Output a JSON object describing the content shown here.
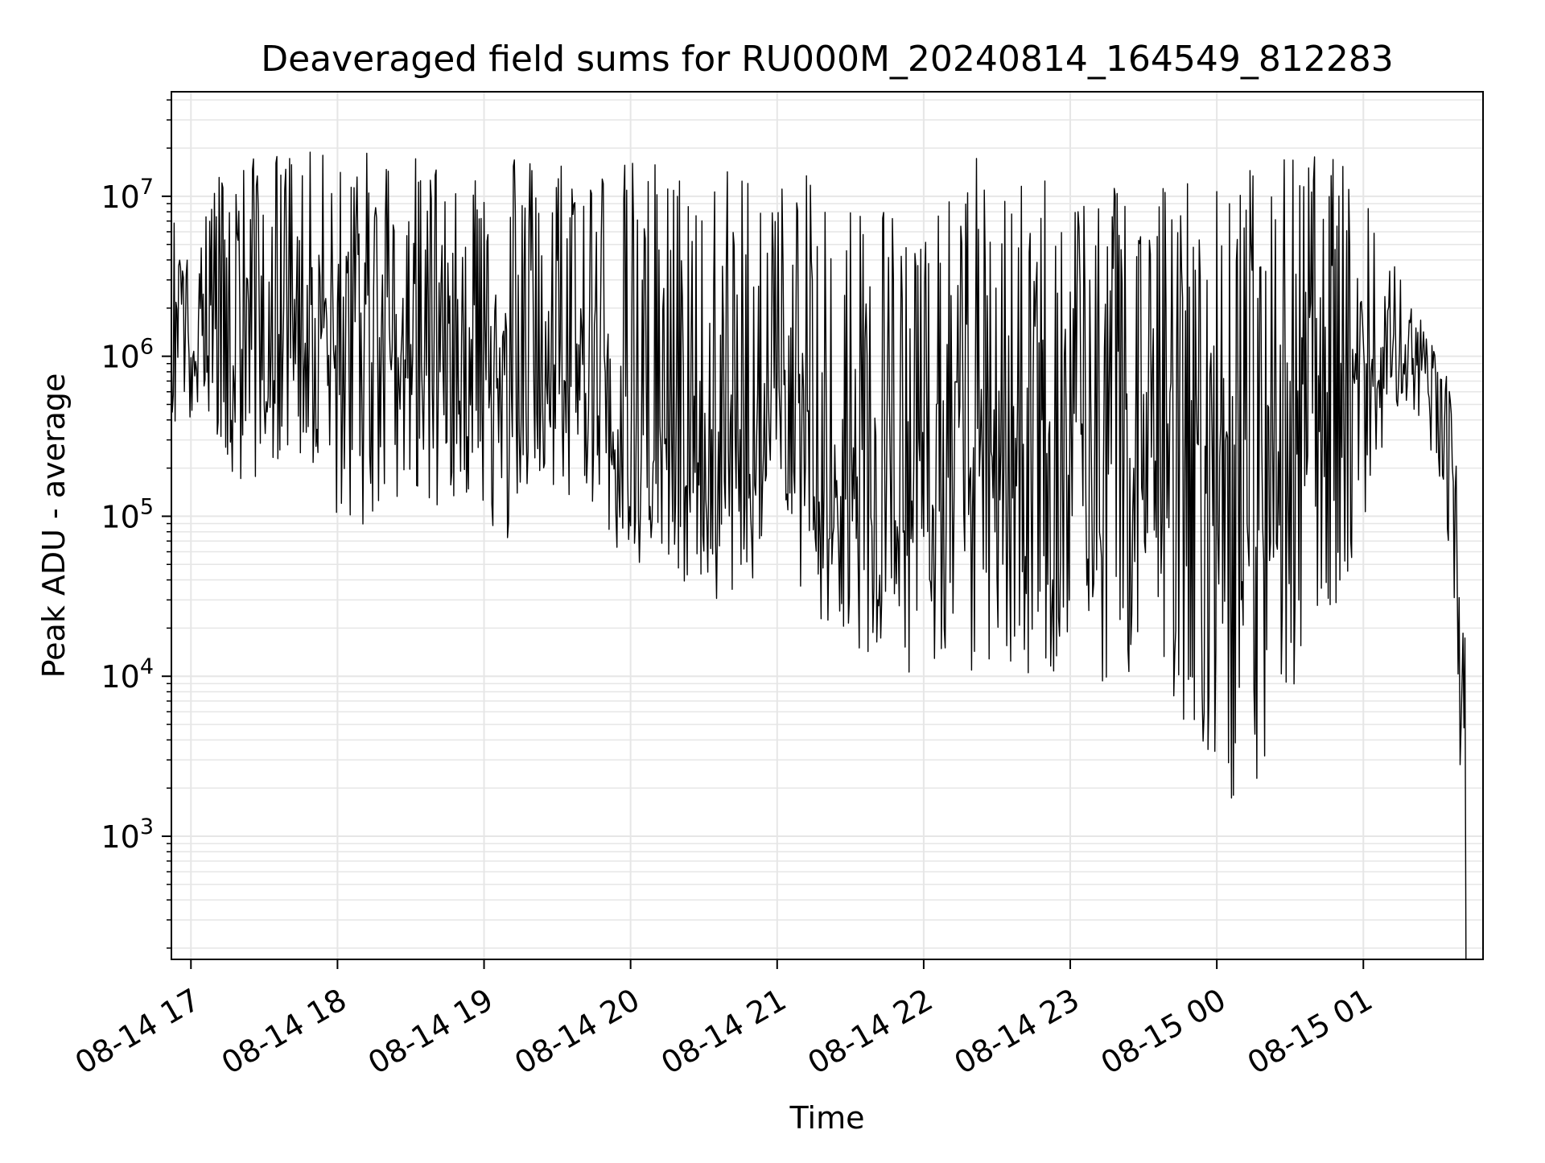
{
  "chart_data": {
    "type": "line",
    "title": "Deaveraged field sums for RU000M_20240814_164549_812283",
    "xlabel": "Time",
    "ylabel": "Peak ADU - average",
    "y_scale": "log",
    "ylim": [
      170,
      45000000
    ],
    "xlim": [
      "2024-08-14 16:52",
      "2024-08-15 01:49"
    ],
    "grid": true,
    "line_color": "#000000",
    "grid_color": "#e6e6e6",
    "x_ticks": [
      {
        "value": "2024-08-14 17:00",
        "label": "08-14 17"
      },
      {
        "value": "2024-08-14 18:00",
        "label": "08-14 18"
      },
      {
        "value": "2024-08-14 19:00",
        "label": "08-14 19"
      },
      {
        "value": "2024-08-14 20:00",
        "label": "08-14 20"
      },
      {
        "value": "2024-08-14 21:00",
        "label": "08-14 21"
      },
      {
        "value": "2024-08-14 22:00",
        "label": "08-14 22"
      },
      {
        "value": "2024-08-14 23:00",
        "label": "08-14 23"
      },
      {
        "value": "2024-08-15 00:00",
        "label": "08-15 00"
      },
      {
        "value": "2024-08-15 01:00",
        "label": "08-15 01"
      }
    ],
    "y_ticks": [
      {
        "value": 1000,
        "base": "10",
        "exp": "3"
      },
      {
        "value": 10000,
        "base": "10",
        "exp": "4"
      },
      {
        "value": 100000,
        "base": "10",
        "exp": "5"
      },
      {
        "value": 1000000,
        "base": "10",
        "exp": "6"
      },
      {
        "value": 10000000,
        "base": "10",
        "exp": "7"
      }
    ],
    "series": [
      {
        "x": [
          "2024-08-14 16:52",
          "2024-08-14 16:55",
          "2024-08-14 17:00",
          "2024-08-14 17:05",
          "2024-08-14 17:10",
          "2024-08-14 17:15",
          "2024-08-14 17:20",
          "2024-08-14 17:30",
          "2024-08-14 17:40",
          "2024-08-14 17:50",
          "2024-08-14 18:00",
          "2024-08-14 18:10",
          "2024-08-14 18:20",
          "2024-08-14 18:30",
          "2024-08-14 18:40",
          "2024-08-14 18:50",
          "2024-08-14 19:00",
          "2024-08-14 19:10",
          "2024-08-14 19:20",
          "2024-08-14 19:30",
          "2024-08-14 19:40",
          "2024-08-14 19:50",
          "2024-08-14 20:00",
          "2024-08-14 20:10",
          "2024-08-14 20:20",
          "2024-08-14 20:30",
          "2024-08-14 20:40",
          "2024-08-14 20:50",
          "2024-08-14 21:00",
          "2024-08-14 21:10",
          "2024-08-14 21:20",
          "2024-08-14 21:30",
          "2024-08-14 21:40",
          "2024-08-14 21:50",
          "2024-08-14 22:00",
          "2024-08-14 22:10",
          "2024-08-14 22:20",
          "2024-08-14 22:30",
          "2024-08-14 22:40",
          "2024-08-14 22:50",
          "2024-08-14 23:00",
          "2024-08-14 23:10",
          "2024-08-14 23:20",
          "2024-08-14 23:30",
          "2024-08-14 23:40",
          "2024-08-14 23:50",
          "2024-08-15 00:00",
          "2024-08-15 00:10",
          "2024-08-15 00:20",
          "2024-08-15 00:30",
          "2024-08-15 00:40",
          "2024-08-15 00:50",
          "2024-08-15 01:00",
          "2024-08-15 01:10",
          "2024-08-15 01:20",
          "2024-08-15 01:25",
          "2024-08-15 01:30",
          "2024-08-15 01:34",
          "2024-08-15 01:38",
          "2024-08-15 01:42"
        ],
        "low": [
          500000,
          200000,
          400000,
          600000,
          300000,
          200000,
          130000,
          200000,
          250000,
          200000,
          100000,
          80000,
          100000,
          150000,
          90000,
          150000,
          100000,
          60000,
          200000,
          100000,
          150000,
          80000,
          40000,
          60000,
          40000,
          30000,
          25000,
          40000,
          120000,
          30000,
          20000,
          12000,
          10000,
          9000,
          8000,
          15000,
          10000,
          12000,
          9000,
          8000,
          15000,
          10000,
          8000,
          10000,
          9000,
          4000,
          3000,
          1200,
          2000,
          5000,
          20000,
          30000,
          80000,
          300000,
          500000,
          300000,
          200000,
          50000,
          9000,
          170
        ],
        "high": [
          11000000,
          3800000,
          8000000,
          12000000,
          14000000,
          15000000,
          17000000,
          18000000,
          20000000,
          19000000,
          18000000,
          20000000,
          19000000,
          18000000,
          17000000,
          20000000,
          18000000,
          25000000,
          18000000,
          19000000,
          18000000,
          16000000,
          17000000,
          18000000,
          15000000,
          15000000,
          16000000,
          15000000,
          12000000,
          14000000,
          12000000,
          10000000,
          12000000,
          8000000,
          7000000,
          9000000,
          22000000,
          10000000,
          12000000,
          15000000,
          10000000,
          14000000,
          16000000,
          17000000,
          15000000,
          14000000,
          12000000,
          16000000,
          17000000,
          18000000,
          19000000,
          17000000,
          12000000,
          5000000,
          2500000,
          1500000,
          1200000,
          900000,
          300000,
          13000
        ],
        "mid": [
          2000000,
          3000000,
          1200000,
          2500000,
          1500000,
          2000000,
          1500000,
          1500000,
          1400000,
          1300000,
          1300000,
          1200000,
          1400000,
          1300000,
          1200000,
          1000000,
          1000000,
          900000,
          800000,
          900000,
          700000,
          600000,
          400000,
          300000,
          250000,
          200000,
          150000,
          200000,
          500000,
          300000,
          200000,
          150000,
          150000,
          120000,
          100000,
          200000,
          300000,
          200000,
          150000,
          120000,
          200000,
          150000,
          120000,
          200000,
          300000,
          150000,
          100000,
          60000,
          200000,
          400000,
          700000,
          1000000,
          1200000,
          1000000,
          900000,
          800000,
          600000,
          400000,
          100000,
          5000
        ]
      }
    ]
  }
}
